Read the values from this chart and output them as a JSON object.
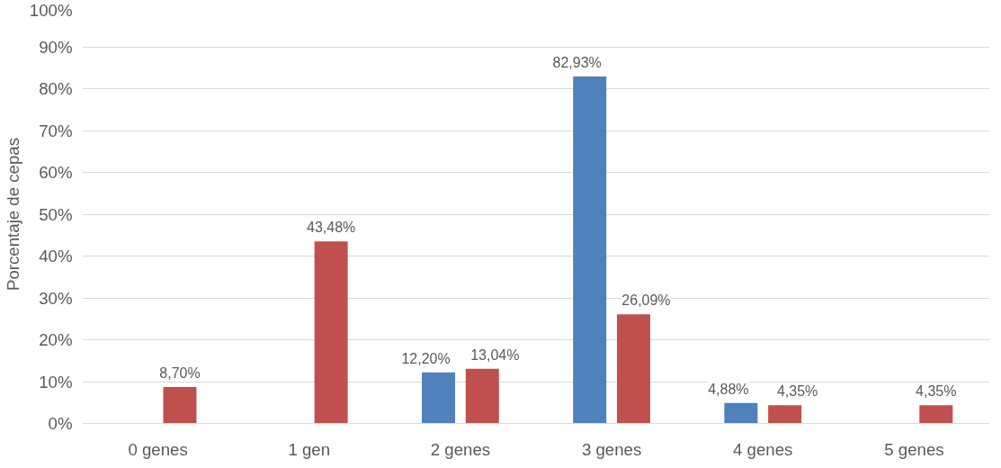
{
  "chart_data": {
    "type": "bar",
    "ylabel": "Porcentaje de cepas",
    "categories": [
      "0 genes",
      "1 gen",
      "2 genes",
      "3 genes",
      "4 genes",
      "5 genes"
    ],
    "series": [
      {
        "color": "#4f81bd",
        "values": [
          null,
          null,
          12.2,
          82.93,
          4.88,
          null
        ],
        "value_labels": [
          null,
          null,
          "12,20%",
          "82,93%",
          "4,88%",
          null
        ]
      },
      {
        "color": "#c0504d",
        "values": [
          8.7,
          43.48,
          13.04,
          26.09,
          4.35,
          4.35
        ],
        "value_labels": [
          "8,70%",
          "43,48%",
          "13,04%",
          "26,09%",
          "4,35%",
          "4,35%"
        ]
      }
    ],
    "ylim": [
      0,
      100
    ],
    "yticks": [
      {
        "value": 0,
        "label": "0%"
      },
      {
        "value": 10,
        "label": "10%"
      },
      {
        "value": 20,
        "label": "20%"
      },
      {
        "value": 30,
        "label": "30%"
      },
      {
        "value": 40,
        "label": "40%"
      },
      {
        "value": 50,
        "label": "50%"
      },
      {
        "value": 60,
        "label": "60%"
      },
      {
        "value": 70,
        "label": "70%"
      },
      {
        "value": 80,
        "label": "80%"
      },
      {
        "value": 90,
        "label": "90%"
      },
      {
        "value": 100,
        "label": "100%"
      }
    ],
    "grid": "y"
  }
}
